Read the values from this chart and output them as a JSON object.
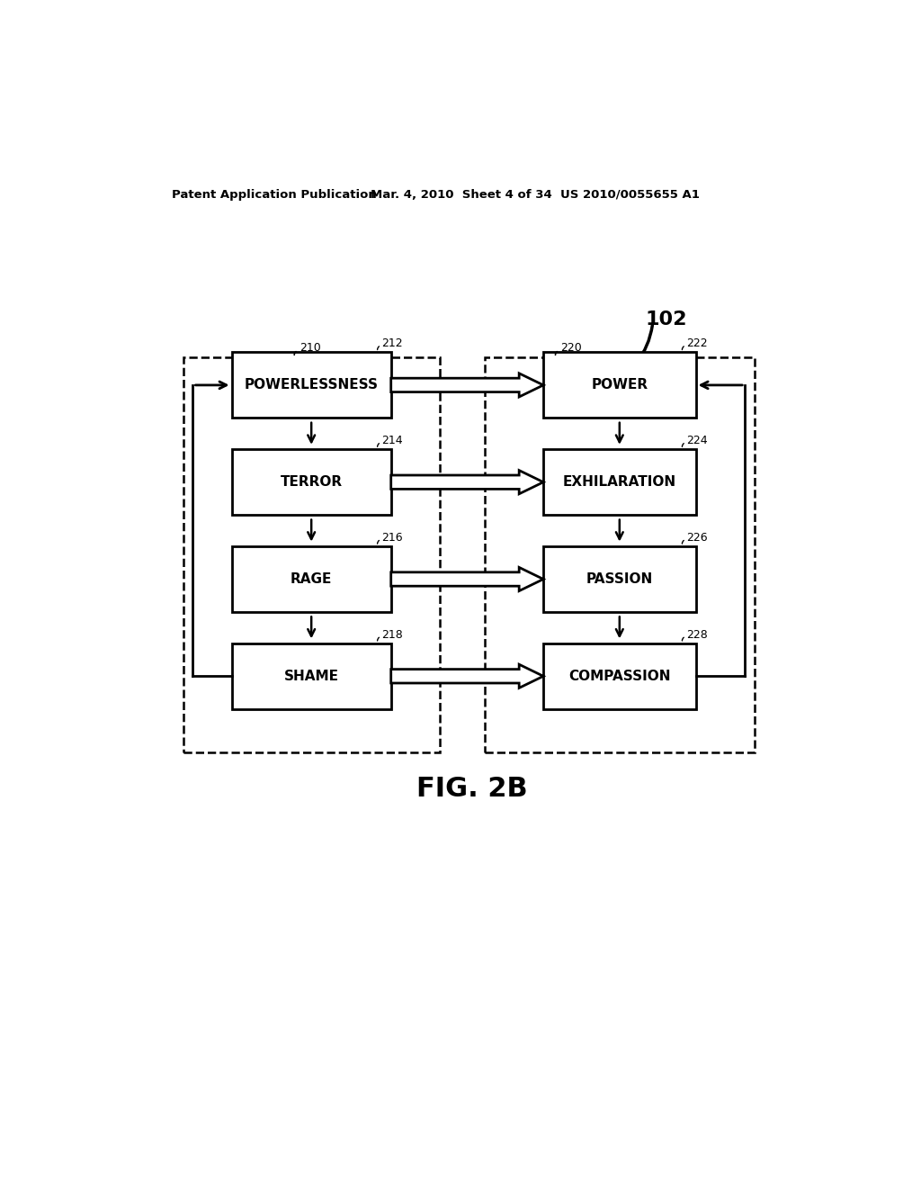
{
  "header_left": "Patent Application Publication",
  "header_mid": "Mar. 4, 2010  Sheet 4 of 34",
  "header_right": "US 2010/0055655 A1",
  "fig_label": "FIG. 2B",
  "ref_102": "102",
  "left_boxes": [
    {
      "label": "POWERLESSNESS",
      "ref": "212"
    },
    {
      "label": "TERROR",
      "ref": "214"
    },
    {
      "label": "RAGE",
      "ref": "216"
    },
    {
      "label": "SHAME",
      "ref": "218"
    }
  ],
  "right_boxes": [
    {
      "label": "POWER",
      "ref": "222"
    },
    {
      "label": "EXHILARATION",
      "ref": "224"
    },
    {
      "label": "PASSION",
      "ref": "226"
    },
    {
      "label": "COMPASSION",
      "ref": "228"
    }
  ],
  "left_group_ref": "210",
  "right_group_ref": "220",
  "bg_color": "#ffffff",
  "text_color": "#000000"
}
